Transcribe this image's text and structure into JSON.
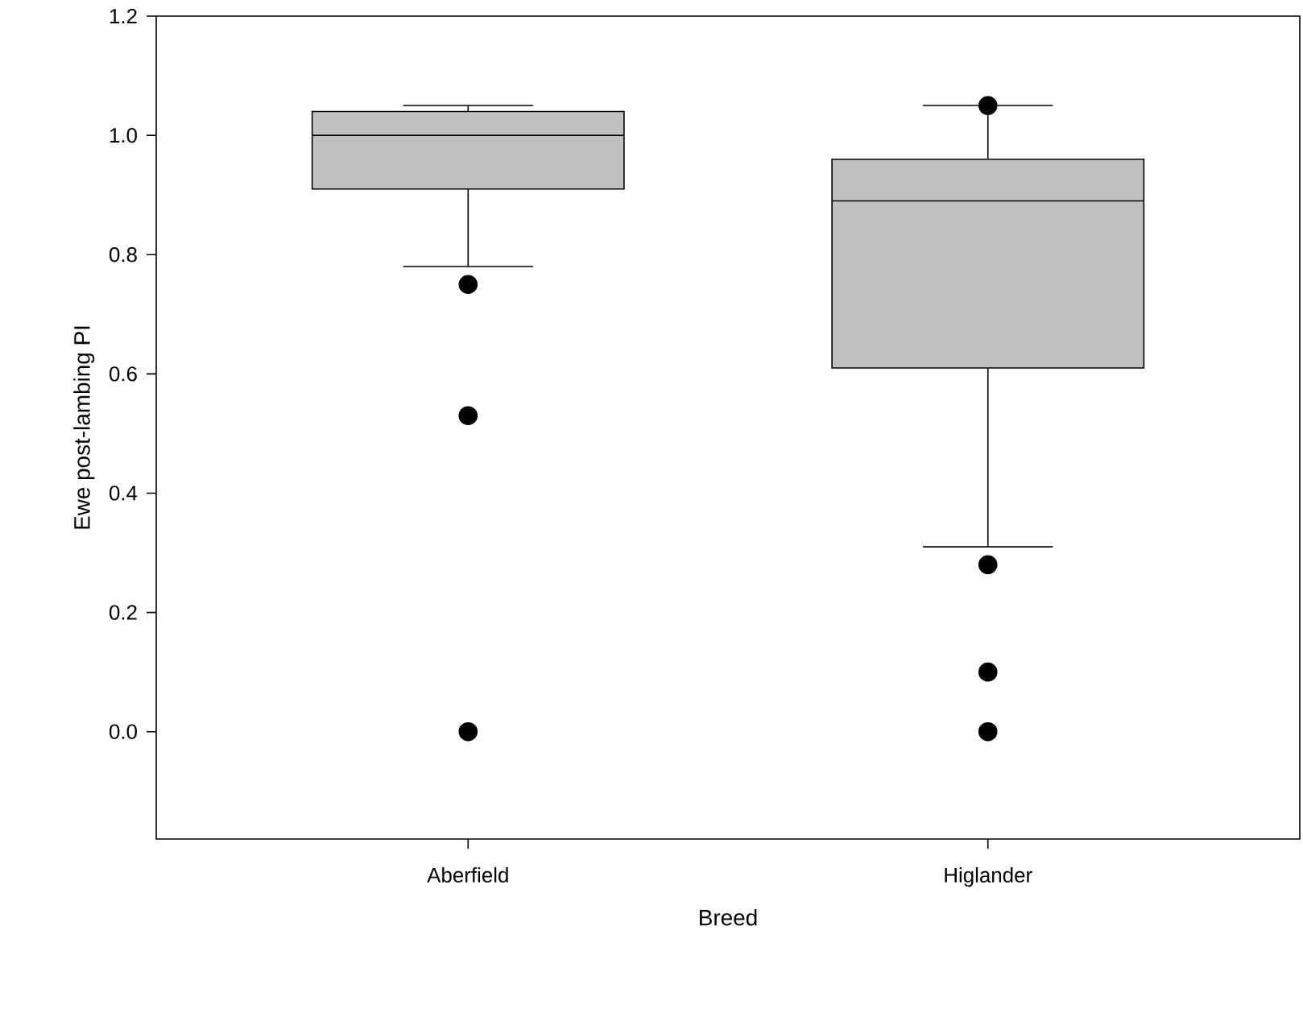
{
  "chart_data": {
    "type": "box",
    "xlabel": "Breed",
    "ylabel": "Ewe post-lambing PI",
    "categories": [
      "Aberfield",
      "Higlander"
    ],
    "color": "#c0c0c0",
    "boxes": [
      {
        "low": 0.78,
        "q1": 0.91,
        "median": 1.0,
        "q3": 1.04,
        "high": 1.05,
        "outliers": [
          0.75,
          0.53,
          0.0
        ]
      },
      {
        "low": 0.31,
        "q1": 0.61,
        "median": 0.89,
        "q3": 0.96,
        "high": 1.05,
        "outliers": [
          1.05,
          0.28,
          0.1,
          0.0
        ]
      }
    ],
    "ylim": [
      -0.18,
      1.2
    ],
    "yticks": [
      {
        "value": 0.0,
        "label": "0.0"
      },
      {
        "value": 0.2,
        "label": "0.2"
      },
      {
        "value": 0.4,
        "label": "0.4"
      },
      {
        "value": 0.6,
        "label": "0.6"
      },
      {
        "value": 0.8,
        "label": "0.8"
      },
      {
        "value": 1.0,
        "label": "1.0"
      },
      {
        "value": 1.2,
        "label": "1.2"
      }
    ],
    "grid": false
  }
}
